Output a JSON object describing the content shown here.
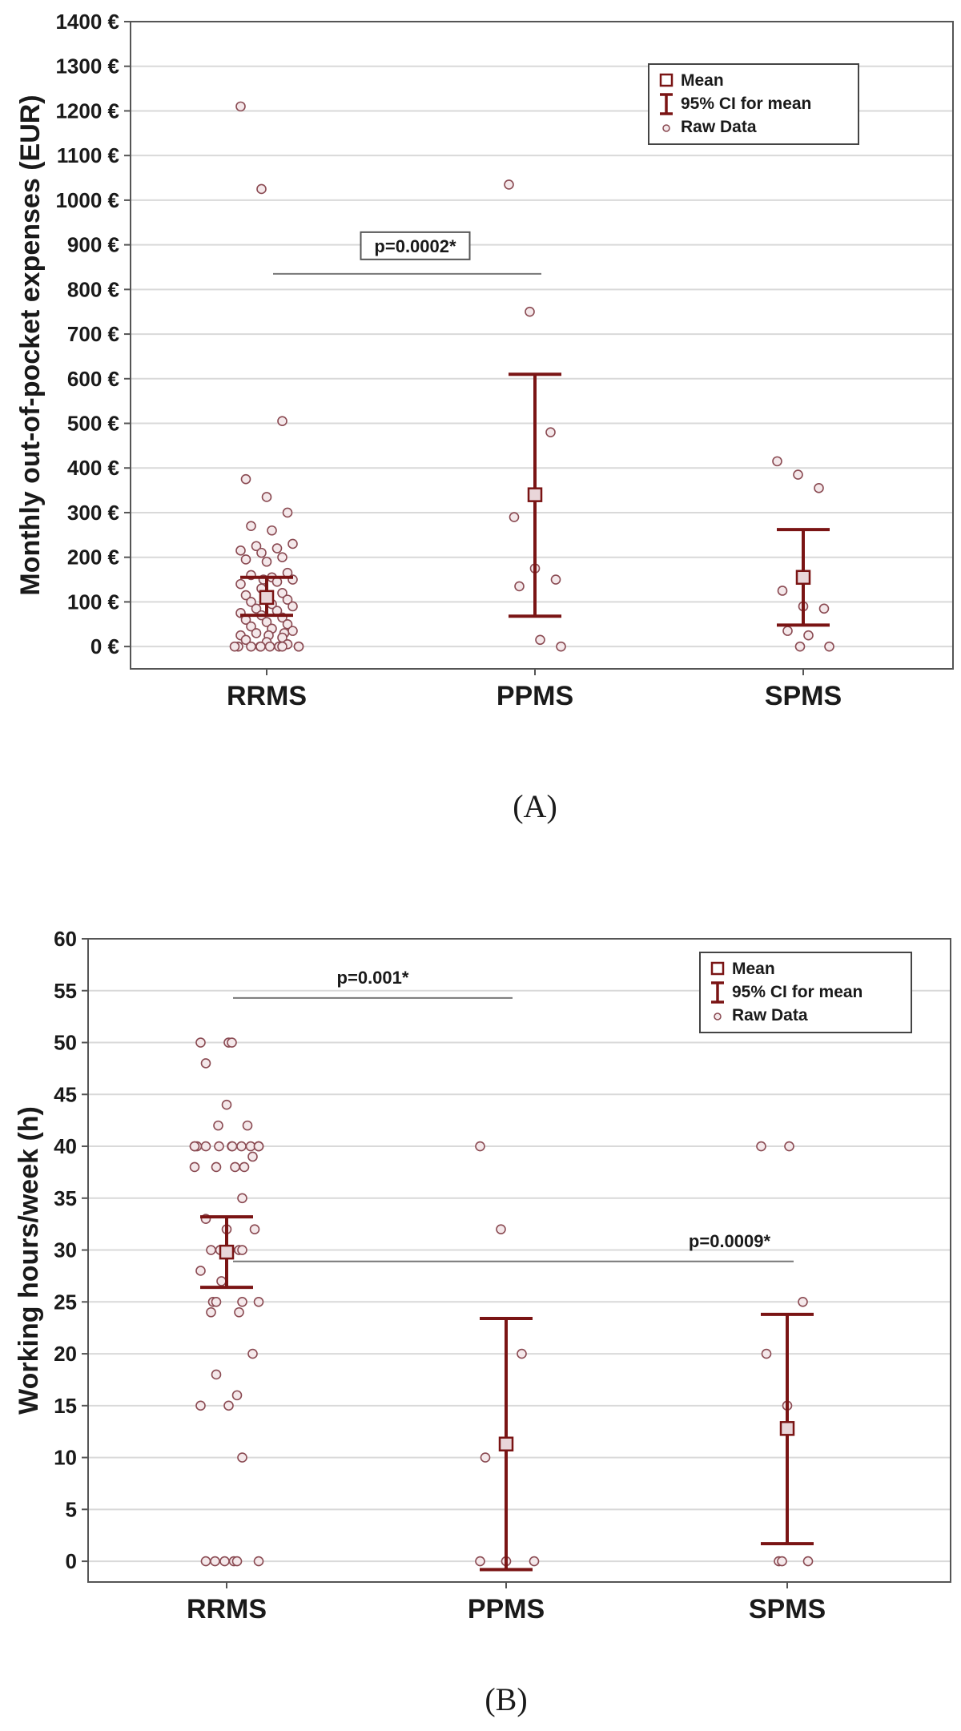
{
  "colors": {
    "accent": "#7a1414",
    "point": "#8a4a52",
    "grid": "#d9d9d9",
    "axis": "#555555"
  },
  "chart_data": [
    {
      "type": "scatter",
      "panel_label": "(A)",
      "ylabel": "Monthly out-of-pocket expenses (EUR)",
      "y_unit": " €",
      "ylim": [
        -50,
        1400
      ],
      "yticks": [
        0,
        100,
        200,
        300,
        400,
        500,
        600,
        700,
        800,
        900,
        1000,
        1100,
        1200,
        1300,
        1400
      ],
      "grid": true,
      "categories": [
        "RRMS",
        "PPMS",
        "SPMS"
      ],
      "legend": {
        "position": "top-right",
        "entries": [
          "Mean",
          "95% CI for mean",
          "Raw Data"
        ]
      },
      "mean_ci": [
        {
          "category": "RRMS",
          "mean": 110,
          "ci_low": 70,
          "ci_high": 155
        },
        {
          "category": "PPMS",
          "mean": 340,
          "ci_low": 68,
          "ci_high": 610
        },
        {
          "category": "SPMS",
          "mean": 155,
          "ci_low": 48,
          "ci_high": 262
        }
      ],
      "raw_data": [
        {
          "category": "RRMS",
          "values": [
            1210,
            1025,
            505,
            375,
            335,
            300,
            270,
            260,
            230,
            225,
            220,
            215,
            210,
            200,
            195,
            190,
            165,
            160,
            155,
            150,
            150,
            145,
            140,
            130,
            120,
            115,
            110,
            105,
            100,
            95,
            90,
            85,
            80,
            75,
            70,
            65,
            60,
            55,
            50,
            45,
            40,
            35,
            30,
            30,
            25,
            25,
            20,
            15,
            10,
            5,
            0,
            0,
            0,
            0,
            0,
            0,
            0,
            0,
            0,
            0
          ]
        },
        {
          "category": "PPMS",
          "values": [
            1035,
            750,
            480,
            290,
            175,
            150,
            135,
            15,
            0
          ]
        },
        {
          "category": "SPMS",
          "values": [
            415,
            385,
            355,
            125,
            90,
            85,
            35,
            25,
            0,
            0
          ]
        }
      ],
      "annotations": [
        {
          "text": "p=0.0002*",
          "from": "RRMS",
          "to": "PPMS",
          "y": 835,
          "boxed": true
        }
      ]
    },
    {
      "type": "scatter",
      "panel_label": "(B)",
      "ylabel": "Working hours/week (h)",
      "y_unit": "",
      "ylim": [
        -2,
        60
      ],
      "yticks": [
        0,
        5,
        10,
        15,
        20,
        25,
        30,
        35,
        40,
        45,
        50,
        55,
        60
      ],
      "grid": true,
      "categories": [
        "RRMS",
        "PPMS",
        "SPMS"
      ],
      "legend": {
        "position": "top-right",
        "entries": [
          "Mean",
          "95% CI for mean",
          "Raw Data"
        ]
      },
      "mean_ci": [
        {
          "category": "RRMS",
          "mean": 29.8,
          "ci_low": 26.4,
          "ci_high": 33.2
        },
        {
          "category": "PPMS",
          "mean": 11.3,
          "ci_low": -0.8,
          "ci_high": 23.4
        },
        {
          "category": "SPMS",
          "mean": 12.8,
          "ci_low": 1.7,
          "ci_high": 23.8
        }
      ],
      "raw_data": [
        {
          "category": "RRMS",
          "values": [
            50,
            50,
            50,
            48,
            44,
            42,
            42,
            40,
            40,
            40,
            40,
            40,
            40,
            40,
            40,
            40,
            40,
            40,
            40,
            39,
            38,
            38,
            38,
            38,
            35,
            33,
            32,
            32,
            30,
            30,
            30,
            30,
            30,
            28,
            27,
            25,
            25,
            25,
            25,
            24,
            24,
            20,
            18,
            16,
            15,
            15,
            10,
            0,
            0,
            0,
            0,
            0,
            0
          ]
        },
        {
          "category": "PPMS",
          "values": [
            40,
            32,
            20,
            10,
            0,
            0,
            0
          ]
        },
        {
          "category": "SPMS",
          "values": [
            40,
            40,
            25,
            20,
            15,
            0,
            0,
            0
          ]
        }
      ],
      "annotations": [
        {
          "text": "p=0.001*",
          "from": "RRMS",
          "to": "PPMS",
          "y": 54.3,
          "boxed": false
        },
        {
          "text": "p=0.0009*",
          "from": "RRMS",
          "to": "SPMS",
          "y": 28.9,
          "boxed": false
        }
      ]
    }
  ]
}
